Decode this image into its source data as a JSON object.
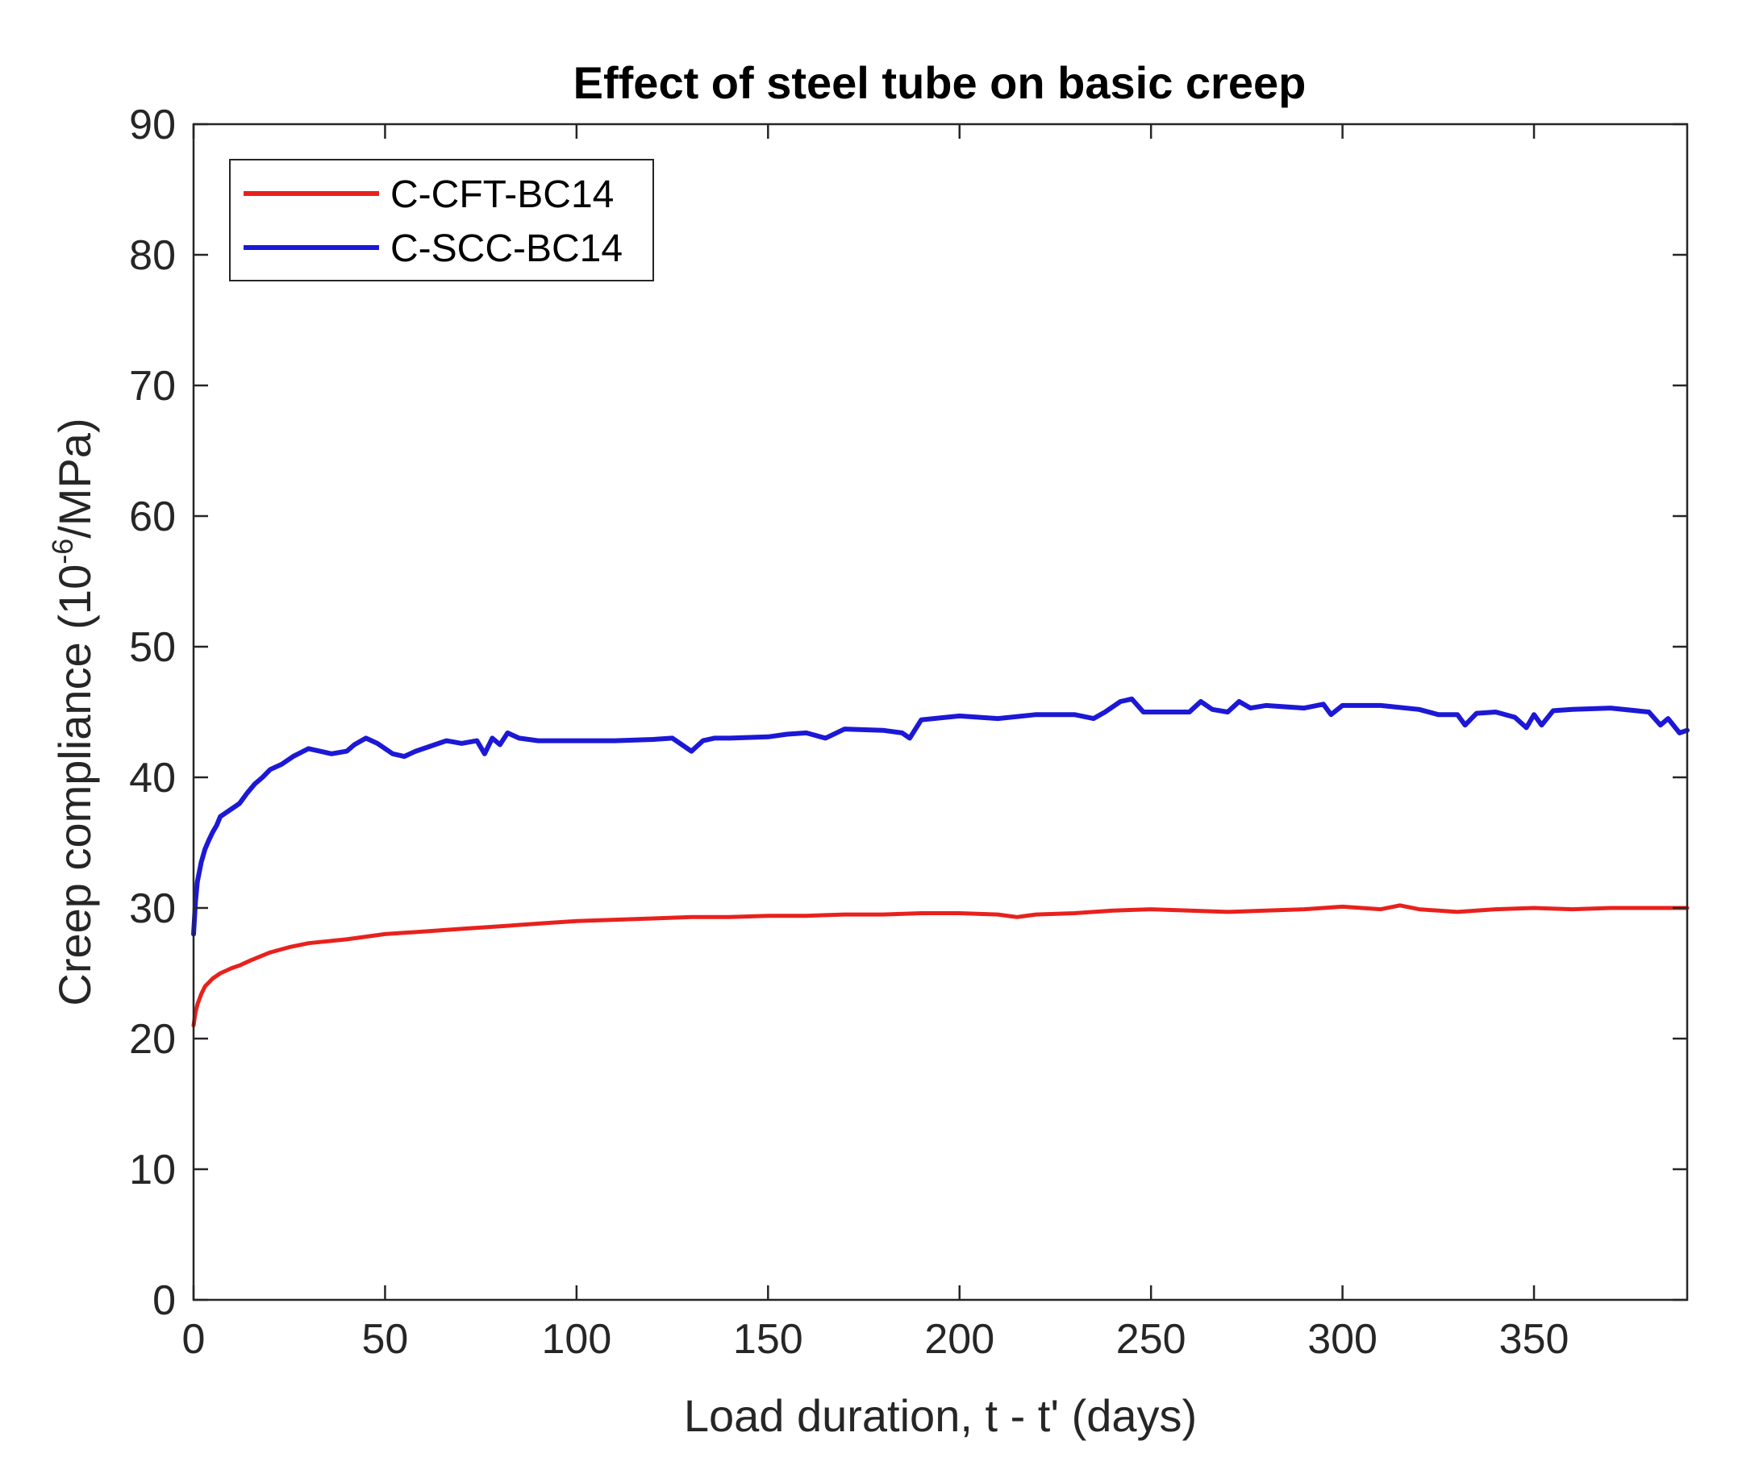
{
  "chart_data": {
    "type": "line",
    "title": "Effect of steel tube on basic creep",
    "xlabel": "Load duration, t - t' (days)",
    "ylabel_main": "Creep compliance (10",
    "ylabel_sup": "-6",
    "ylabel_tail": "/MPa)",
    "xlim": [
      0,
      390
    ],
    "ylim": [
      0,
      90
    ],
    "xticks": [
      0,
      50,
      100,
      150,
      200,
      250,
      300,
      350
    ],
    "yticks": [
      0,
      10,
      20,
      30,
      40,
      50,
      60,
      70,
      80,
      90
    ],
    "grid": false,
    "legend_location": "top-left",
    "series": [
      {
        "name": "C-CFT-BC14",
        "color": "#e8211d",
        "x": [
          0,
          0.5,
          1,
          2,
          3,
          5,
          7,
          10,
          12,
          15,
          20,
          25,
          30,
          40,
          50,
          60,
          70,
          80,
          90,
          100,
          110,
          120,
          130,
          140,
          150,
          160,
          170,
          180,
          190,
          200,
          210,
          215,
          220,
          230,
          240,
          250,
          260,
          270,
          280,
          290,
          300,
          310,
          315,
          320,
          330,
          340,
          350,
          360,
          370,
          380,
          390
        ],
        "y": [
          21.0,
          22.0,
          22.6,
          23.4,
          24.0,
          24.6,
          25.0,
          25.4,
          25.6,
          26.0,
          26.6,
          27.0,
          27.3,
          27.6,
          28.0,
          28.2,
          28.4,
          28.6,
          28.8,
          29.0,
          29.1,
          29.2,
          29.3,
          29.3,
          29.4,
          29.4,
          29.5,
          29.5,
          29.6,
          29.6,
          29.5,
          29.3,
          29.5,
          29.6,
          29.8,
          29.9,
          29.8,
          29.7,
          29.8,
          29.9,
          30.1,
          29.9,
          30.2,
          29.9,
          29.7,
          29.9,
          30.0,
          29.9,
          30.0,
          30.0,
          30.0
        ]
      },
      {
        "name": "C-SCC-BC14",
        "color": "#1c18d6",
        "x": [
          0,
          0.5,
          1,
          2,
          3,
          4,
          5,
          6,
          7,
          8,
          10,
          12,
          14,
          16,
          18,
          20,
          23,
          26,
          30,
          33,
          36,
          40,
          42,
          45,
          48,
          52,
          55,
          58,
          62,
          66,
          70,
          74,
          76,
          78,
          80,
          82,
          85,
          90,
          100,
          110,
          120,
          125,
          130,
          133,
          136,
          140,
          150,
          155,
          160,
          165,
          170,
          180,
          185,
          187,
          190,
          200,
          210,
          220,
          230,
          235,
          238,
          242,
          245,
          248,
          255,
          260,
          263,
          266,
          270,
          273,
          276,
          280,
          290,
          295,
          297,
          300,
          310,
          320,
          325,
          330,
          332,
          335,
          340,
          345,
          348,
          350,
          352,
          355,
          360,
          370,
          380,
          383,
          385,
          388,
          390
        ],
        "y": [
          28.0,
          30.5,
          32.0,
          33.5,
          34.5,
          35.2,
          35.8,
          36.3,
          37.0,
          37.2,
          37.6,
          38.0,
          38.8,
          39.5,
          40.0,
          40.6,
          41.0,
          41.6,
          42.2,
          42.0,
          41.8,
          42.0,
          42.5,
          43.0,
          42.6,
          41.8,
          41.6,
          42.0,
          42.4,
          42.8,
          42.6,
          42.8,
          41.8,
          43.0,
          42.5,
          43.4,
          43.0,
          42.8,
          42.8,
          42.8,
          42.9,
          43.0,
          42.0,
          42.8,
          43.0,
          43.0,
          43.1,
          43.3,
          43.4,
          43.0,
          43.7,
          43.6,
          43.4,
          43.0,
          44.4,
          44.7,
          44.5,
          44.8,
          44.8,
          44.5,
          45.0,
          45.8,
          46.0,
          45.0,
          45.0,
          45.0,
          45.8,
          45.2,
          45.0,
          45.8,
          45.3,
          45.5,
          45.3,
          45.6,
          44.8,
          45.5,
          45.5,
          45.2,
          44.8,
          44.8,
          44.0,
          44.9,
          45.0,
          44.6,
          43.8,
          44.8,
          44.0,
          45.1,
          45.2,
          45.3,
          45.0,
          44.0,
          44.5,
          43.4,
          43.6
        ]
      }
    ]
  }
}
